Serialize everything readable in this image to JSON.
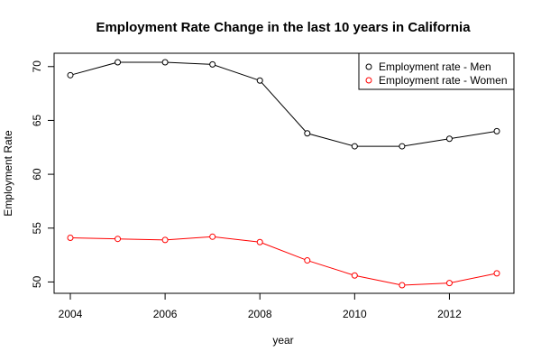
{
  "chart_data": {
    "type": "line",
    "title": "Employment Rate Change in the last 10 years in California",
    "xlabel": "year",
    "ylabel": "Employment Rate",
    "x": [
      2004,
      2005,
      2006,
      2007,
      2008,
      2009,
      2010,
      2011,
      2012,
      2013
    ],
    "xlim": [
      2004,
      2013
    ],
    "ylim": [
      49.7,
      70.4
    ],
    "x_ticks": [
      2004,
      2006,
      2008,
      2010,
      2012
    ],
    "y_ticks": [
      50,
      55,
      60,
      65,
      70
    ],
    "grid": false,
    "legend_position": "top-right",
    "series": [
      {
        "name": "Employment rate - Men",
        "color": "#000000",
        "values": [
          69.2,
          70.4,
          70.4,
          70.2,
          68.7,
          63.8,
          62.6,
          62.6,
          63.3,
          64.0
        ]
      },
      {
        "name": "Employment rate - Women",
        "color": "#ff0000",
        "values": [
          54.1,
          54.0,
          53.9,
          54.2,
          53.7,
          52.0,
          50.6,
          49.7,
          49.9,
          50.8
        ]
      }
    ]
  }
}
